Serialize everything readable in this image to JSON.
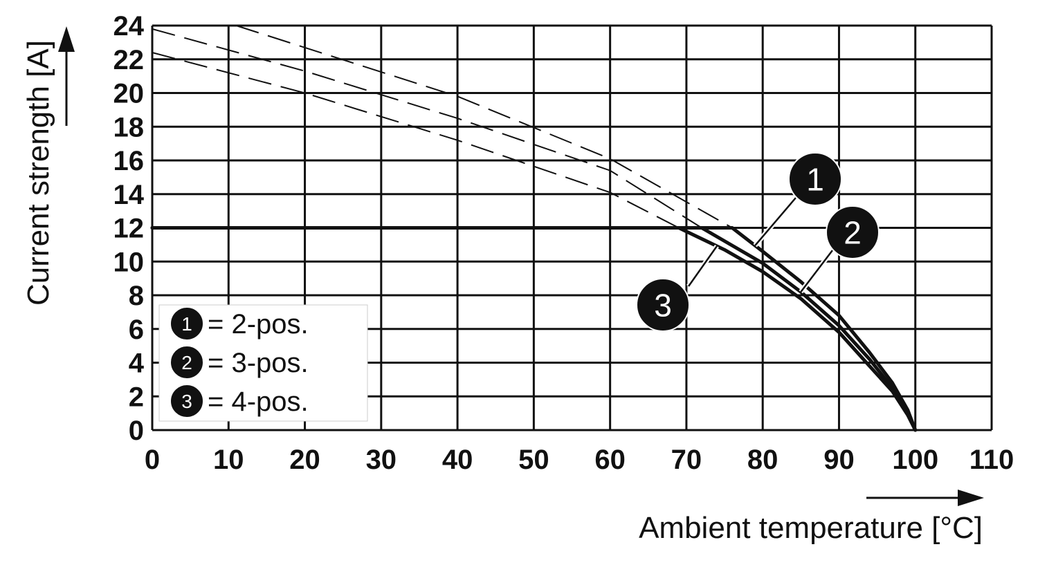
{
  "chart_data": {
    "type": "line",
    "xlabel": "Ambient temperature [°C]",
    "ylabel": "Current strength [A]",
    "xlim": [
      0,
      110
    ],
    "ylim": [
      0,
      24
    ],
    "x_ticks": [
      0,
      10,
      20,
      30,
      40,
      50,
      60,
      70,
      80,
      90,
      100,
      110
    ],
    "y_ticks": [
      0,
      2,
      4,
      6,
      8,
      10,
      12,
      14,
      16,
      18,
      20,
      22,
      24
    ],
    "grid": true,
    "legend_position": "bottom-left",
    "series": [
      {
        "name": "2-pos.",
        "marker": "1",
        "x": [
          0,
          76,
          80,
          85,
          90,
          94,
          97,
          99,
          100
        ],
        "y": [
          12,
          12,
          10.6,
          8.8,
          6.8,
          4.6,
          2.8,
          1.2,
          0
        ],
        "extrapolated": {
          "x": [
            11,
            40,
            60,
            76
          ],
          "y": [
            24,
            19.8,
            16.1,
            12
          ]
        }
      },
      {
        "name": "3-pos.",
        "marker": "2",
        "x": [
          0,
          72,
          80,
          85,
          90,
          94,
          97,
          99,
          100
        ],
        "y": [
          12,
          12,
          9.9,
          8.2,
          6.2,
          4.2,
          2.5,
          1.0,
          0
        ],
        "extrapolated": {
          "x": [
            0,
            20,
            40,
            60,
            72
          ],
          "y": [
            23.8,
            21.3,
            18.5,
            15.4,
            12
          ]
        }
      },
      {
        "name": "4-pos.",
        "marker": "3",
        "x": [
          0,
          69,
          75,
          80,
          85,
          90,
          94,
          97,
          99,
          100
        ],
        "y": [
          12,
          12,
          10.7,
          9.4,
          7.8,
          5.8,
          3.8,
          2.3,
          0.9,
          0
        ],
        "extrapolated": {
          "x": [
            0,
            20,
            40,
            60,
            69
          ],
          "y": [
            22.4,
            20,
            17.2,
            14.1,
            12
          ]
        }
      }
    ],
    "legend": [
      {
        "marker": "1",
        "text": "= 2-pos."
      },
      {
        "marker": "2",
        "text": "= 3-pos."
      },
      {
        "marker": "3",
        "text": "= 4-pos."
      }
    ],
    "callouts": [
      {
        "marker": "1",
        "target_series": 0,
        "target_x": 79
      },
      {
        "marker": "2",
        "target_series": 1,
        "target_x": 85
      },
      {
        "marker": "3",
        "target_series": 2,
        "target_x": 74
      }
    ]
  },
  "colors": {
    "ink": "#111111",
    "grid": "#111111",
    "badge_fill": "#111111",
    "badge_text": "#ffffff"
  }
}
